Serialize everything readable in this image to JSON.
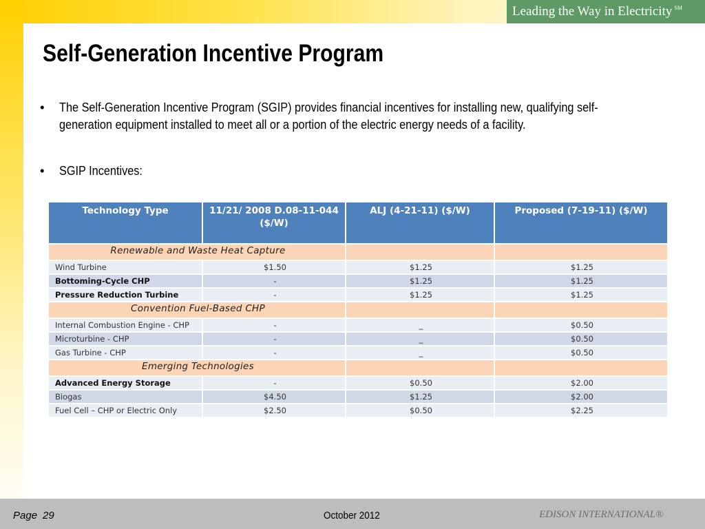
{
  "brand": {
    "tagline": "Leading the Way in Electricity",
    "mark": "SM"
  },
  "title": "Self-Generation Incentive Program",
  "bullets": [
    "The Self-Generation Incentive Program (SGIP) provides financial incentives for installing new, qualifying self-generation equipment installed to meet all or a portion of the electric energy needs of a facility.",
    "SGIP Incentives:"
  ],
  "bullet_symbol": "•",
  "table": {
    "headers": [
      "Technology Type",
      "11/21/ 2008 D.08-11-044 ($/W)",
      "ALJ (4-21-11) ($/W)",
      "Proposed (7-19-11) ($/W)"
    ],
    "sections": [
      "Renewable and Waste Heat Capture",
      "Convention Fuel-Based CHP",
      "Emerging Technologies"
    ],
    "rows": [
      {
        "tech": "Wind Turbine",
        "v2008": "$1.50",
        "alj": "$1.25",
        "proposed": "$1.25"
      },
      {
        "tech": "Bottoming-Cycle CHP",
        "v2008": "-",
        "alj": "$1.25",
        "proposed": "$1.25"
      },
      {
        "tech": "Pressure Reduction Turbine",
        "v2008": "-",
        "alj": "$1.25",
        "proposed": "$1.25"
      },
      {
        "tech": "Internal Combustion Engine -  CHP",
        "v2008": "-",
        "alj": "_",
        "proposed": "$0.50"
      },
      {
        "tech": "Microturbine - CHP",
        "v2008": "-",
        "alj": "_",
        "proposed": "$0.50"
      },
      {
        "tech": "Gas Turbine - CHP",
        "v2008": "-",
        "alj": "_",
        "proposed": "$0.50"
      },
      {
        "tech": "Advanced Energy Storage",
        "v2008": "-",
        "alj": "$0.50",
        "proposed": "$2.00"
      },
      {
        "tech": "Biogas",
        "v2008": "$4.50",
        "alj": "$1.25",
        "proposed": "$2.00"
      },
      {
        "tech": "Fuel Cell – CHP or Electric Only",
        "v2008": "$2.50",
        "alj": "$0.50",
        "proposed": "$2.25"
      }
    ]
  },
  "footer": {
    "page_label": "Page",
    "page_number": "29",
    "date": "October 2012",
    "company": "EDISON INTERNATIONAL®"
  },
  "colors": {
    "header_blue": "#4f81bd",
    "section_peach": "#fbd5b5",
    "row_light": "#e9edf4",
    "row_dark": "#d0d8e8",
    "brand_green": "#5f9a66",
    "accent_yellow": "#ffd000",
    "footer_gray": "#bdbdbd"
  }
}
